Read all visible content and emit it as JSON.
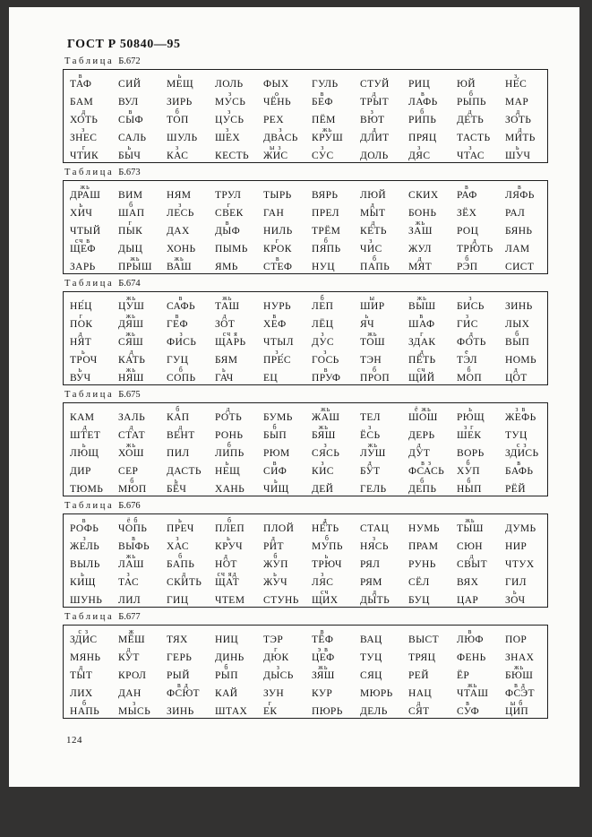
{
  "header": {
    "title": "ГОСТ Р 50840—95"
  },
  "labels": {
    "table_word": "Таблица"
  },
  "footer": {
    "page_number": "124"
  },
  "colors": {
    "page_bg": "#fbfbf9",
    "frame_bg": "#333231",
    "ink": "#161616",
    "table_border": "#1e1e1e"
  },
  "tables": [
    {
      "number": "Б.672",
      "rows": [
        [
          [
            "ТАФ",
            "в"
          ],
          [
            "СИЙ",
            ""
          ],
          [
            "МЕЩ",
            "ь"
          ],
          [
            "ЛОЛЬ",
            ""
          ],
          [
            "ФЫХ",
            ""
          ],
          [
            "ГУЛЬ",
            ""
          ],
          [
            "СТУЙ",
            ""
          ],
          [
            "РИЦ",
            ""
          ],
          [
            "ЮЙ",
            ""
          ],
          [
            "НЕ́С",
            "з"
          ]
        ],
        [
          [
            "БАМ",
            ""
          ],
          [
            "ВУЛ",
            ""
          ],
          [
            "ЗИРЬ",
            ""
          ],
          [
            "МУСЬ",
            "з"
          ],
          [
            "ЧЁНЬ",
            "о"
          ],
          [
            "БЕФ",
            "в"
          ],
          [
            "ТРЫТ",
            "д"
          ],
          [
            "ЛАФЬ",
            "в"
          ],
          [
            "РЫПЬ",
            "б"
          ],
          [
            "МАР",
            ""
          ]
        ],
        [
          [
            "ХОТЬ",
            "д"
          ],
          [
            "СЫФ",
            "в"
          ],
          [
            "ТОП",
            "б"
          ],
          [
            "ЦУСЬ",
            "з"
          ],
          [
            "РЕХ",
            ""
          ],
          [
            "ПЁМ",
            ""
          ],
          [
            "ВЮТ",
            "з"
          ],
          [
            "РИПЬ",
            "б"
          ],
          [
            "ДЕТЬ",
            "д"
          ],
          [
            "ЗОТЬ",
            "д"
          ]
        ],
        [
          [
            "ЗНЕС",
            "з"
          ],
          [
            "САЛЬ",
            ""
          ],
          [
            "ШУЛЬ",
            ""
          ],
          [
            "ШЕХ",
            "з"
          ],
          [
            "ДВАСЬ",
            "з"
          ],
          [
            "КРУШ",
            "жь"
          ],
          [
            "ДЛИТ",
            "д"
          ],
          [
            "ПРЯЦ",
            ""
          ],
          [
            "ТАСТЬ",
            ""
          ],
          [
            "МИТЬ",
            "д"
          ]
        ],
        [
          [
            "ЧТИК",
            "г"
          ],
          [
            "БЫЧ",
            "ь"
          ],
          [
            "КАС",
            "з"
          ],
          [
            "КЕСТЬ",
            ""
          ],
          [
            "ЖИС",
            "ы з"
          ],
          [
            "СУС",
            "з"
          ],
          [
            "ДОЛЬ",
            ""
          ],
          [
            "ДЯС",
            "з"
          ],
          [
            "ЧТАС",
            "з"
          ],
          [
            "ШУЧ",
            "ь"
          ]
        ]
      ]
    },
    {
      "number": "Б.673",
      "rows": [
        [
          [
            "ДРАШ",
            "жь"
          ],
          [
            "ВИМ",
            ""
          ],
          [
            "НЯМ",
            ""
          ],
          [
            "ТРУЛ",
            ""
          ],
          [
            "ТЫРЬ",
            ""
          ],
          [
            "ВЯРЬ",
            ""
          ],
          [
            "ЛЮЙ",
            ""
          ],
          [
            "СКИХ",
            ""
          ],
          [
            "РАФ",
            "в"
          ],
          [
            "ЛЯФЬ",
            "в"
          ]
        ],
        [
          [
            "ХИЧ",
            "ь"
          ],
          [
            "ШАП",
            "б"
          ],
          [
            "ЛЕСЬ",
            "з"
          ],
          [
            "СВЕК",
            "г"
          ],
          [
            "ГАН",
            ""
          ],
          [
            "ПРЕЛ",
            ""
          ],
          [
            "МЫТ",
            "д"
          ],
          [
            "БОНЬ",
            ""
          ],
          [
            "ЗЁХ",
            ""
          ],
          [
            "РАЛ",
            ""
          ]
        ],
        [
          [
            "ЧТЫЙ",
            ""
          ],
          [
            "ПЫК",
            "г"
          ],
          [
            "ДАХ",
            ""
          ],
          [
            "ДЫФ",
            "в"
          ],
          [
            "НИЛЬ",
            ""
          ],
          [
            "ТРЁМ",
            ""
          ],
          [
            "КЕТЬ",
            "д"
          ],
          [
            "ЗАШ",
            "жь"
          ],
          [
            "РОЦ",
            ""
          ],
          [
            "БЯНЬ",
            ""
          ]
        ],
        [
          [
            "ЩЕФ",
            "сч в"
          ],
          [
            "ДЫЦ",
            ""
          ],
          [
            "ХОНЬ",
            ""
          ],
          [
            "ПЫМЬ",
            ""
          ],
          [
            "КРОК",
            "г"
          ],
          [
            "ПЯПЬ",
            "б"
          ],
          [
            "ЧИС",
            "з"
          ],
          [
            "ЖУЛ",
            ""
          ],
          [
            "ТРЮТЬ",
            "д"
          ],
          [
            "ЛАМ",
            ""
          ]
        ],
        [
          [
            "ЗАРЬ",
            ""
          ],
          [
            "ПРЫШ",
            "жь"
          ],
          [
            "ВАШ",
            "жь"
          ],
          [
            "ЯМЬ",
            ""
          ],
          [
            "СТЕФ",
            "в"
          ],
          [
            "НУЦ",
            ""
          ],
          [
            "ПАПЬ",
            "б"
          ],
          [
            "МЯТ",
            "д"
          ],
          [
            "РЭП",
            "б"
          ],
          [
            "СИСТ",
            ""
          ]
        ]
      ]
    },
    {
      "number": "Б.674",
      "rows": [
        [
          [
            "НЕ́Ц",
            ""
          ],
          [
            "ЦУШ",
            "жь"
          ],
          [
            "САФЬ",
            "в"
          ],
          [
            "ТАШ",
            "жь"
          ],
          [
            "НУРЬ",
            ""
          ],
          [
            "ЛЕП",
            "б"
          ],
          [
            "ШИР",
            "ы"
          ],
          [
            "ВЫШ",
            "жь"
          ],
          [
            "БИСЬ",
            "з"
          ],
          [
            "ЗИНЬ",
            ""
          ]
        ],
        [
          [
            "ПОК",
            "г"
          ],
          [
            "ДЯШ",
            "жь"
          ],
          [
            "ГЕФ",
            "в"
          ],
          [
            "ЗОТ",
            "д"
          ],
          [
            "ХЕФ",
            "в"
          ],
          [
            "ЛЁЦ",
            ""
          ],
          [
            "ЯЧ",
            "ь"
          ],
          [
            "ШАФ",
            "в"
          ],
          [
            "ГИС",
            "з"
          ],
          [
            "ЛЫХ",
            ""
          ]
        ],
        [
          [
            "НЯТ",
            "д"
          ],
          [
            "СЯШ",
            "жь"
          ],
          [
            "ФИСЬ",
            "з"
          ],
          [
            "ЩАРЬ",
            "сч я"
          ],
          [
            "ЧТЫЛ",
            ""
          ],
          [
            "ДУС",
            "з"
          ],
          [
            "ТОШ",
            "жь"
          ],
          [
            "ЗДАК",
            "г"
          ],
          [
            "ФОТЬ",
            "д"
          ],
          [
            "ВЫП",
            "б"
          ]
        ],
        [
          [
            "ТРОЧ",
            "ь"
          ],
          [
            "КАТЬ",
            "д"
          ],
          [
            "ГУЦ",
            ""
          ],
          [
            "БЯМ",
            ""
          ],
          [
            "ПРЕ́С",
            "з"
          ],
          [
            "ГОСЬ",
            "з"
          ],
          [
            "ТЭН",
            ""
          ],
          [
            "ПЁТЬ",
            "д"
          ],
          [
            "ТЭЛ",
            "е"
          ],
          [
            "НОМЬ",
            ""
          ]
        ],
        [
          [
            "ВУЧ",
            "ь"
          ],
          [
            "НЯШ",
            "жь"
          ],
          [
            "СОПЬ",
            "б"
          ],
          [
            "ГАЧ",
            "ь"
          ],
          [
            "ЕЦ",
            ""
          ],
          [
            "ПРУФ",
            "в"
          ],
          [
            "ПРОП",
            "б"
          ],
          [
            "ЩИЙ",
            "сч"
          ],
          [
            "МОП",
            "б"
          ],
          [
            "ЦОТ",
            "д"
          ]
        ]
      ]
    },
    {
      "number": "Б.675",
      "rows": [
        [
          [
            "КАМ",
            ""
          ],
          [
            "ЗАЛЬ",
            ""
          ],
          [
            "КАП",
            "б"
          ],
          [
            "РОТЬ",
            "д"
          ],
          [
            "БУМЬ",
            ""
          ],
          [
            "ЖАШ",
            "жь"
          ],
          [
            "ТЕЛ",
            ""
          ],
          [
            "ШОШ",
            "ё жь"
          ],
          [
            "РЮЩ",
            "ь"
          ],
          [
            "ЖЕФЬ",
            "з в"
          ]
        ],
        [
          [
            "ШТЕТ",
            "д"
          ],
          [
            "СТАТ",
            "д"
          ],
          [
            "ВЕНТ",
            "д"
          ],
          [
            "РОНЬ",
            ""
          ],
          [
            "БЫП",
            "б"
          ],
          [
            "БЯШ",
            "жь"
          ],
          [
            "ЁСЬ",
            "з"
          ],
          [
            "ДЕРЬ",
            ""
          ],
          [
            "ШЕК",
            "з г"
          ],
          [
            "ТУЦ",
            ""
          ]
        ],
        [
          [
            "ЛЮЩ",
            "ь"
          ],
          [
            "ХОШ",
            "жь"
          ],
          [
            "ПИЛ",
            ""
          ],
          [
            "ЛИПЬ",
            "б"
          ],
          [
            "РЮМ",
            ""
          ],
          [
            "СЯСЬ",
            "з"
          ],
          [
            "ЛУШ",
            "жь"
          ],
          [
            "ДУТ",
            "д"
          ],
          [
            "ВОРЬ",
            ""
          ],
          [
            "ЗДИСЬ",
            "с з"
          ]
        ],
        [
          [
            "ДИР",
            ""
          ],
          [
            "СЕР",
            ""
          ],
          [
            "ДАСТЬ",
            ""
          ],
          [
            "НЕЩ",
            "ь"
          ],
          [
            "СИФ",
            "в"
          ],
          [
            "КИС",
            "з"
          ],
          [
            "БУТ",
            "д"
          ],
          [
            "ФСАСЬ",
            "в з"
          ],
          [
            "ХУП",
            "б"
          ],
          [
            "БАФЬ",
            "в"
          ]
        ],
        [
          [
            "ТЮМЬ",
            ""
          ],
          [
            "МЮП",
            "б"
          ],
          [
            "БЁЧ",
            "ь"
          ],
          [
            "ХАНЬ",
            ""
          ],
          [
            "ЧИЩ",
            "ь"
          ],
          [
            "ДЕЙ",
            ""
          ],
          [
            "ГЕЛЬ",
            ""
          ],
          [
            "ДЕПЬ",
            "б"
          ],
          [
            "НЫП",
            "б"
          ],
          [
            "РЁЙ",
            ""
          ]
        ]
      ]
    },
    {
      "number": "Б.676",
      "rows": [
        [
          [
            "РОФЬ",
            "в"
          ],
          [
            "ЧОПЬ",
            "ё б"
          ],
          [
            "ПРЕЧ",
            "ь"
          ],
          [
            "ПЛЕП",
            "б"
          ],
          [
            "ПЛОЙ",
            ""
          ],
          [
            "НЕ́ТЬ",
            "д"
          ],
          [
            "СТАЦ",
            ""
          ],
          [
            "НУМЬ",
            ""
          ],
          [
            "ТЫШ",
            "жь"
          ],
          [
            "ДУМЬ",
            ""
          ]
        ],
        [
          [
            "ЖЕЛЬ",
            "з"
          ],
          [
            "ВЫФЬ",
            "в"
          ],
          [
            "ХАС",
            "з"
          ],
          [
            "КРУЧ",
            "ь"
          ],
          [
            "РИТ",
            "д"
          ],
          [
            "МУПЬ",
            "б"
          ],
          [
            "НЯСЬ",
            "з"
          ],
          [
            "ПРАМ",
            ""
          ],
          [
            "СЮН",
            ""
          ],
          [
            "НИР",
            ""
          ]
        ],
        [
          [
            "ВЫЛЬ",
            ""
          ],
          [
            "ЛАШ",
            "жь"
          ],
          [
            "БАПЬ",
            "б"
          ],
          [
            "НОТ",
            "д"
          ],
          [
            "ЖУП",
            "б"
          ],
          [
            "ТРЮЧ",
            "ь"
          ],
          [
            "РЯЛ",
            ""
          ],
          [
            "РУНЬ",
            ""
          ],
          [
            "СВЫТ",
            "д"
          ],
          [
            "ЧТУХ",
            ""
          ]
        ],
        [
          [
            "КИЩ",
            "ь"
          ],
          [
            "ТАС",
            "з"
          ],
          [
            "СКИТЬ",
            "д"
          ],
          [
            "ЩАТ",
            "сч яд"
          ],
          [
            "ЖУЧ",
            "ь"
          ],
          [
            "ЛЯС",
            "з"
          ],
          [
            "РЯМ",
            ""
          ],
          [
            "СЁЛ",
            ""
          ],
          [
            "ВЯХ",
            ""
          ],
          [
            "ГИЛ",
            ""
          ]
        ],
        [
          [
            "ШУНЬ",
            ""
          ],
          [
            "ЛИЛ",
            ""
          ],
          [
            "ГИЦ",
            ""
          ],
          [
            "ЧТЕМ",
            ""
          ],
          [
            "СТУНЬ",
            ""
          ],
          [
            "ЩИХ",
            "сч"
          ],
          [
            "ДЫТЬ",
            "д"
          ],
          [
            "БУЦ",
            ""
          ],
          [
            "ЦАР",
            ""
          ],
          [
            "ЗОЧ",
            "ь"
          ]
        ]
      ]
    },
    {
      "number": "Б.677",
      "rows": [
        [
          [
            "ЗДИС",
            "с з"
          ],
          [
            "МЁШ",
            "ж"
          ],
          [
            "ТЯХ",
            ""
          ],
          [
            "НИЦ",
            ""
          ],
          [
            "ТЭР",
            ""
          ],
          [
            "ТЁФ",
            "в"
          ],
          [
            "ВАЦ",
            ""
          ],
          [
            "ВЫСТ",
            ""
          ],
          [
            "ЛЮФ",
            "в"
          ],
          [
            "ПОР",
            ""
          ]
        ],
        [
          [
            "МЯНЬ",
            ""
          ],
          [
            "КУТ",
            "д"
          ],
          [
            "ГЕРЬ",
            ""
          ],
          [
            "ДИНЬ",
            ""
          ],
          [
            "ДЮК",
            "г"
          ],
          [
            "ЦЕФ",
            "э в"
          ],
          [
            "ТУЦ",
            ""
          ],
          [
            "ТРЯЦ",
            ""
          ],
          [
            "ФЕНЬ",
            ""
          ],
          [
            "ЗНАХ",
            ""
          ]
        ],
        [
          [
            "ТЫТ",
            "д"
          ],
          [
            "КРОЛ",
            ""
          ],
          [
            "РЫЙ",
            ""
          ],
          [
            "РЫП",
            "б"
          ],
          [
            "ДЫСЬ",
            "з"
          ],
          [
            "ЗЯШ",
            "жь"
          ],
          [
            "СЯЦ",
            ""
          ],
          [
            "РЕЙ",
            ""
          ],
          [
            "ЁР",
            ""
          ],
          [
            "БЮШ",
            "жь"
          ]
        ],
        [
          [
            "ЛИХ",
            ""
          ],
          [
            "ДАН",
            ""
          ],
          [
            "ФСЮТ",
            "в д"
          ],
          [
            "КАЙ",
            ""
          ],
          [
            "ЗУН",
            ""
          ],
          [
            "КУР",
            ""
          ],
          [
            "МЮРЬ",
            ""
          ],
          [
            "НАЦ",
            ""
          ],
          [
            "ЧТАШ",
            "жь"
          ],
          [
            "ФСЭТ",
            "в д"
          ]
        ],
        [
          [
            "НАПЬ",
            "б"
          ],
          [
            "МЫСЬ",
            "з"
          ],
          [
            "ЗИНЬ",
            ""
          ],
          [
            "ШТАХ",
            ""
          ],
          [
            "ЕК",
            "г"
          ],
          [
            "ПЮРЬ",
            ""
          ],
          [
            "ДЕЛЬ",
            ""
          ],
          [
            "СЯТ",
            "д"
          ],
          [
            "СУФ",
            "в"
          ],
          [
            "ЦИП",
            "ы б"
          ]
        ]
      ]
    }
  ]
}
